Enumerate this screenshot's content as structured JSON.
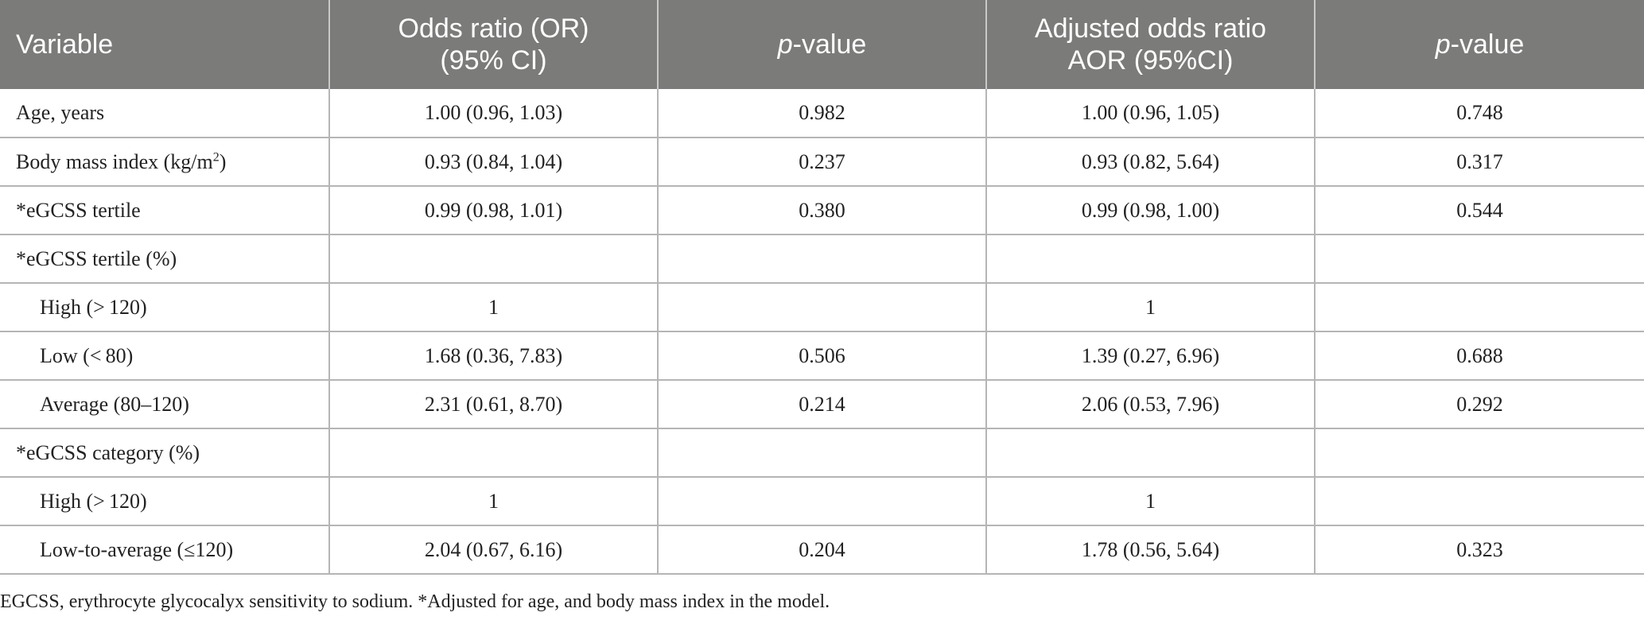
{
  "table": {
    "headers": [
      {
        "line1": "Variable",
        "line2": ""
      },
      {
        "line1": "Odds ratio (OR)",
        "line2": "(95% CI)"
      },
      {
        "italic": "p",
        "rest": "-value"
      },
      {
        "line1": "Adjusted odds ratio",
        "line2": "AOR (95%CI)"
      },
      {
        "italic": "p",
        "rest": "-value"
      }
    ],
    "rows": [
      {
        "variable": "Age, years",
        "or": "1.00 (0.96, 1.03)",
        "p": "0.982",
        "aor": "1.00 (0.96, 1.05)",
        "p_adj": "0.748"
      },
      {
        "variable": "Body mass index (kg/m",
        "variable_sup": "2",
        "variable_end": ")",
        "or": "0.93 (0.84, 1.04)",
        "p": "0.237",
        "aor": "0.93 (0.82, 5.64)",
        "p_adj": "0.317"
      },
      {
        "variable": "*eGCSS tertile",
        "or": "0.99 (0.98, 1.01)",
        "p": "0.380",
        "aor": "0.99 (0.98, 1.00)",
        "p_adj": "0.544"
      },
      {
        "variable": "*eGCSS tertile (%)",
        "or": "",
        "p": "",
        "aor": "",
        "p_adj": ""
      },
      {
        "variable": "High (> 120)",
        "or": "1",
        "p": "",
        "aor": "1",
        "p_adj": "",
        "indent": true
      },
      {
        "variable": "Low (< 80)",
        "or": "1.68 (0.36, 7.83)",
        "p": "0.506",
        "aor": "1.39 (0.27, 6.96)",
        "p_adj": "0.688",
        "indent": true
      },
      {
        "variable": "Average (80–120)",
        "or": "2.31 (0.61, 8.70)",
        "p": "0.214",
        "aor": "2.06 (0.53, 7.96)",
        "p_adj": "0.292",
        "indent": true
      },
      {
        "variable": "*eGCSS category (%)",
        "or": "",
        "p": "",
        "aor": "",
        "p_adj": ""
      },
      {
        "variable": "High (> 120)",
        "or": "1",
        "p": "",
        "aor": "1",
        "p_adj": "",
        "indent": true
      },
      {
        "variable": "Low-to-average (≤120)",
        "or": "2.04 (0.67, 6.16)",
        "p": "0.204",
        "aor": "1.78 (0.56, 5.64)",
        "p_adj": "0.323",
        "indent": true
      }
    ]
  },
  "footnote": "EGCSS, erythrocyte glycocalyx sensitivity to sodium. *Adjusted for age, and body mass index in the model.",
  "colors": {
    "header_bg": "#7b7c7a",
    "header_text": "#ffffff",
    "grid": "#b5b5b5"
  }
}
